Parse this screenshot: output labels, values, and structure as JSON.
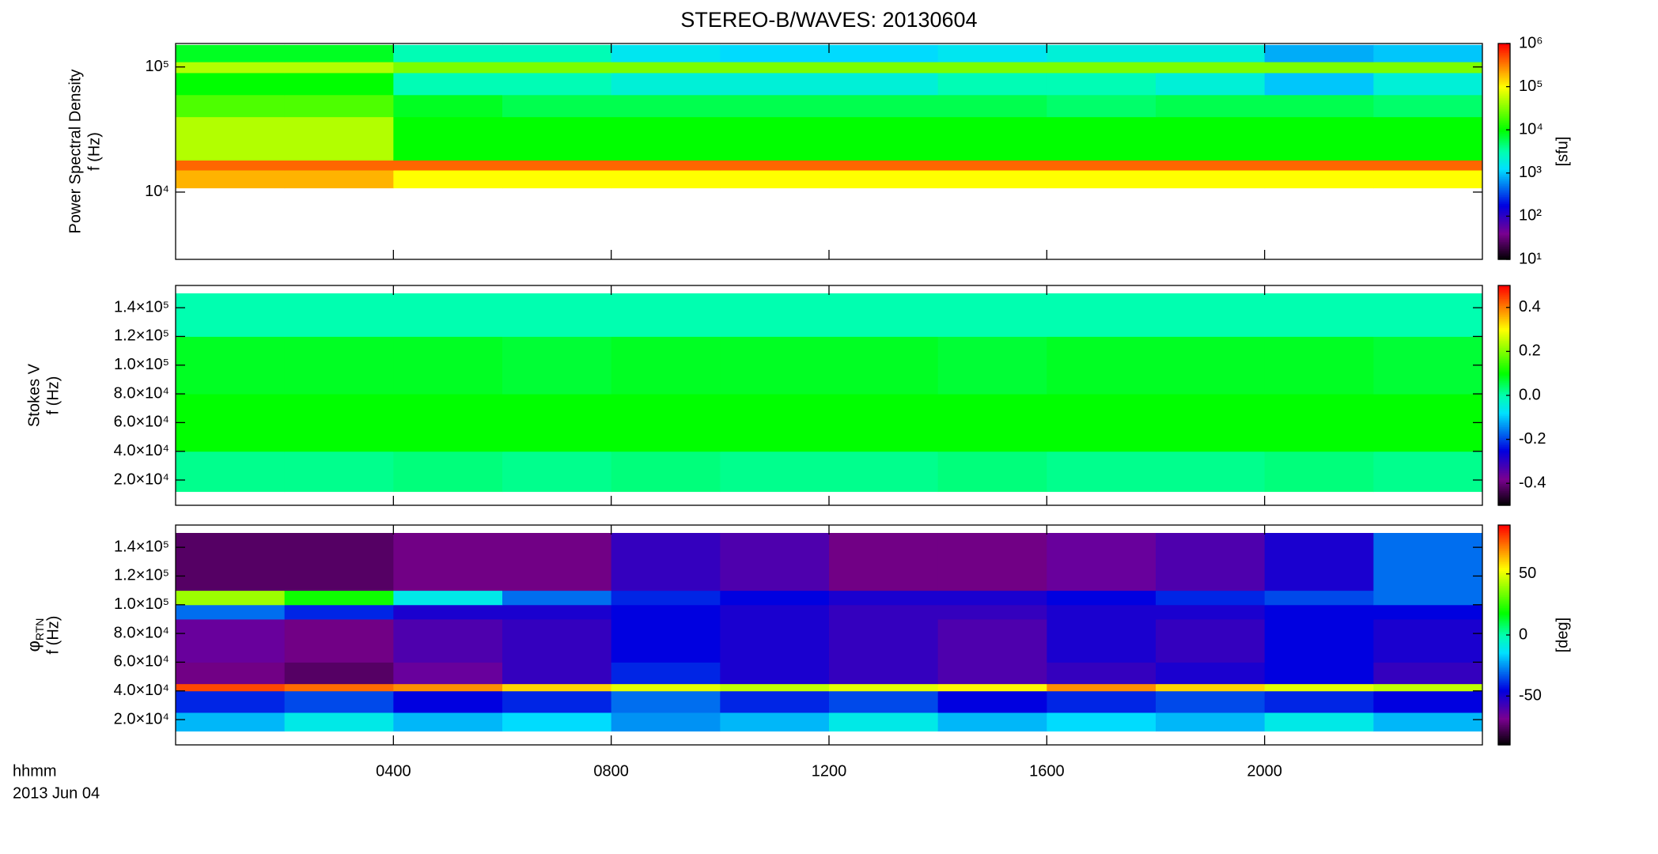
{
  "title": "STEREO-B/WAVES: 20130604",
  "chart_data": [
    {
      "type": "heatmap",
      "quantity": "Power Spectral Density",
      "ylabel": "f (Hz)",
      "log_y": true,
      "xlim": [
        0,
        24
      ],
      "ylim": [
        2900,
        154000
      ],
      "yticks": [
        {
          "value": 10000,
          "label": "10⁴"
        },
        {
          "value": 100000,
          "label": "10⁵"
        }
      ],
      "x_edges": [
        0,
        2,
        4,
        6,
        8,
        10,
        12,
        14,
        16,
        18,
        20,
        22,
        24
      ],
      "y_edges": [
        10800,
        15000,
        18000,
        40000,
        60000,
        90000,
        110000,
        150000
      ],
      "values": [
        [
          200000,
          200000,
          100000,
          100000,
          100000,
          100000,
          100000,
          100000,
          100000,
          100000,
          100000,
          100000
        ],
        [
          400000,
          400000,
          400000,
          400000,
          400000,
          400000,
          400000,
          400000,
          400000,
          400000,
          400000,
          400000
        ],
        [
          50000,
          50000,
          10000,
          10000,
          10000,
          10000,
          10000,
          10000,
          10000,
          10000,
          10000,
          10000
        ],
        [
          20000,
          20000,
          8000,
          6000,
          6000,
          6000,
          6000,
          6000,
          5000,
          6000,
          6000,
          5000
        ],
        [
          10000,
          10000,
          3000,
          3000,
          2000,
          2000,
          2000,
          3000,
          3000,
          2000,
          1000,
          2000
        ],
        [
          50000,
          50000,
          30000,
          30000,
          30000,
          30000,
          30000,
          30000,
          30000,
          30000,
          30000,
          30000
        ],
        [
          8000,
          8000,
          3000,
          3000,
          1500,
          1200,
          1200,
          1500,
          2000,
          2000,
          800,
          1000
        ]
      ],
      "colorbar": {
        "lim": [
          10,
          1000000
        ],
        "log": true,
        "label": "[sfu]",
        "ticks": [
          {
            "value": 10,
            "label": "10¹"
          },
          {
            "value": 100,
            "label": "10²"
          },
          {
            "value": 1000,
            "label": "10³"
          },
          {
            "value": 10000,
            "label": "10⁴"
          },
          {
            "value": 100000,
            "label": "10⁵"
          },
          {
            "value": 1000000,
            "label": "10⁶"
          }
        ]
      }
    },
    {
      "type": "heatmap",
      "quantity": "Stokes V",
      "ylabel": "f (Hz)",
      "log_y": false,
      "xlim": [
        0,
        24
      ],
      "ylim": [
        2400,
        155500
      ],
      "yticks": [
        {
          "value": 20000,
          "label": "2.0×10⁴"
        },
        {
          "value": 40000,
          "label": "4.0×10⁴"
        },
        {
          "value": 60000,
          "label": "6.0×10⁴"
        },
        {
          "value": 80000,
          "label": "8.0×10⁴"
        },
        {
          "value": 100000,
          "label": "1.0×10⁵"
        },
        {
          "value": 120000,
          "label": "1.2×10⁵"
        },
        {
          "value": 140000,
          "label": "1.4×10⁵"
        }
      ],
      "x_edges": [
        0,
        2,
        4,
        6,
        8,
        10,
        12,
        14,
        16,
        18,
        20,
        22,
        24
      ],
      "y_edges": [
        12000,
        40000,
        80000,
        120000,
        150000
      ],
      "values": [
        [
          0.02,
          0.02,
          0.03,
          0.02,
          0.03,
          0.02,
          0.02,
          0.03,
          0.02,
          0.02,
          0.03,
          0.02
        ],
        [
          0.1,
          0.1,
          0.1,
          0.1,
          0.1,
          0.1,
          0.1,
          0.1,
          0.1,
          0.1,
          0.1,
          0.1
        ],
        [
          0.08,
          0.08,
          0.08,
          0.07,
          0.08,
          0.08,
          0.08,
          0.07,
          0.08,
          0.08,
          0.08,
          0.07
        ],
        [
          0.0,
          0.0,
          0.0,
          0.0,
          0.0,
          0.0,
          0.0,
          0.0,
          0.0,
          0.0,
          0.0,
          0.0
        ]
      ],
      "colorbar": {
        "lim": [
          -0.5,
          0.5
        ],
        "log": false,
        "ticks": [
          -0.4,
          -0.2,
          {
            "value": 0,
            "label": "0.0"
          },
          0.2,
          0.4
        ]
      }
    },
    {
      "type": "heatmap",
      "quantity": "φ",
      "quantity_sub": "RTN",
      "ylabel": "f (Hz)",
      "log_y": false,
      "xlim": [
        0,
        24
      ],
      "ylim": [
        2400,
        155500
      ],
      "yticks": [
        {
          "value": 20000,
          "label": "2.0×10⁴"
        },
        {
          "value": 40000,
          "label": "4.0×10⁴"
        },
        {
          "value": 60000,
          "label": "6.0×10⁴"
        },
        {
          "value": 80000,
          "label": "8.0×10⁴"
        },
        {
          "value": 100000,
          "label": "1.0×10⁵"
        },
        {
          "value": 120000,
          "label": "1.2×10⁵"
        },
        {
          "value": 140000,
          "label": "1.4×10⁵"
        }
      ],
      "xticks": [
        {
          "value": 4,
          "label": "0400"
        },
        {
          "value": 8,
          "label": "0800"
        },
        {
          "value": 12,
          "label": "1200"
        },
        {
          "value": 16,
          "label": "1600"
        },
        {
          "value": 20,
          "label": "2000"
        }
      ],
      "xlabel": "hhmm",
      "date": "2013 Jun 04",
      "x_edges": [
        0,
        2,
        4,
        6,
        8,
        10,
        12,
        14,
        16,
        18,
        20,
        22,
        24
      ],
      "y_edges": [
        12000,
        25000,
        40000,
        45000,
        60000,
        90000,
        100000,
        110000,
        150000
      ],
      "values": [
        [
          -20,
          -10,
          -20,
          -15,
          -25,
          -20,
          -10,
          -20,
          -15,
          -20,
          -10,
          -20
        ],
        [
          -40,
          -35,
          -45,
          -40,
          -30,
          -40,
          -35,
          -45,
          -40,
          -35,
          -40,
          -45
        ],
        [
          80,
          75,
          70,
          60,
          50,
          45,
          50,
          55,
          70,
          60,
          50,
          45
        ],
        [
          -70,
          -75,
          -65,
          -55,
          -40,
          -50,
          -55,
          -60,
          -55,
          -50,
          -45,
          -55
        ],
        [
          -65,
          -70,
          -60,
          -55,
          -45,
          -50,
          -55,
          -60,
          -50,
          -55,
          -45,
          -50
        ],
        [
          -30,
          -40,
          -50,
          -50,
          -45,
          -50,
          -55,
          -55,
          -50,
          -50,
          -45,
          -45
        ],
        [
          40,
          20,
          -10,
          -30,
          -40,
          -45,
          -50,
          -50,
          -45,
          -40,
          -35,
          -30
        ],
        [
          -75,
          -75,
          -70,
          -70,
          -55,
          -60,
          -70,
          -70,
          -65,
          -60,
          -50,
          -30
        ]
      ],
      "colorbar": {
        "lim": [
          -90,
          90
        ],
        "log": false,
        "label": "[deg]",
        "ticks": [
          -50,
          0,
          50
        ]
      }
    }
  ]
}
